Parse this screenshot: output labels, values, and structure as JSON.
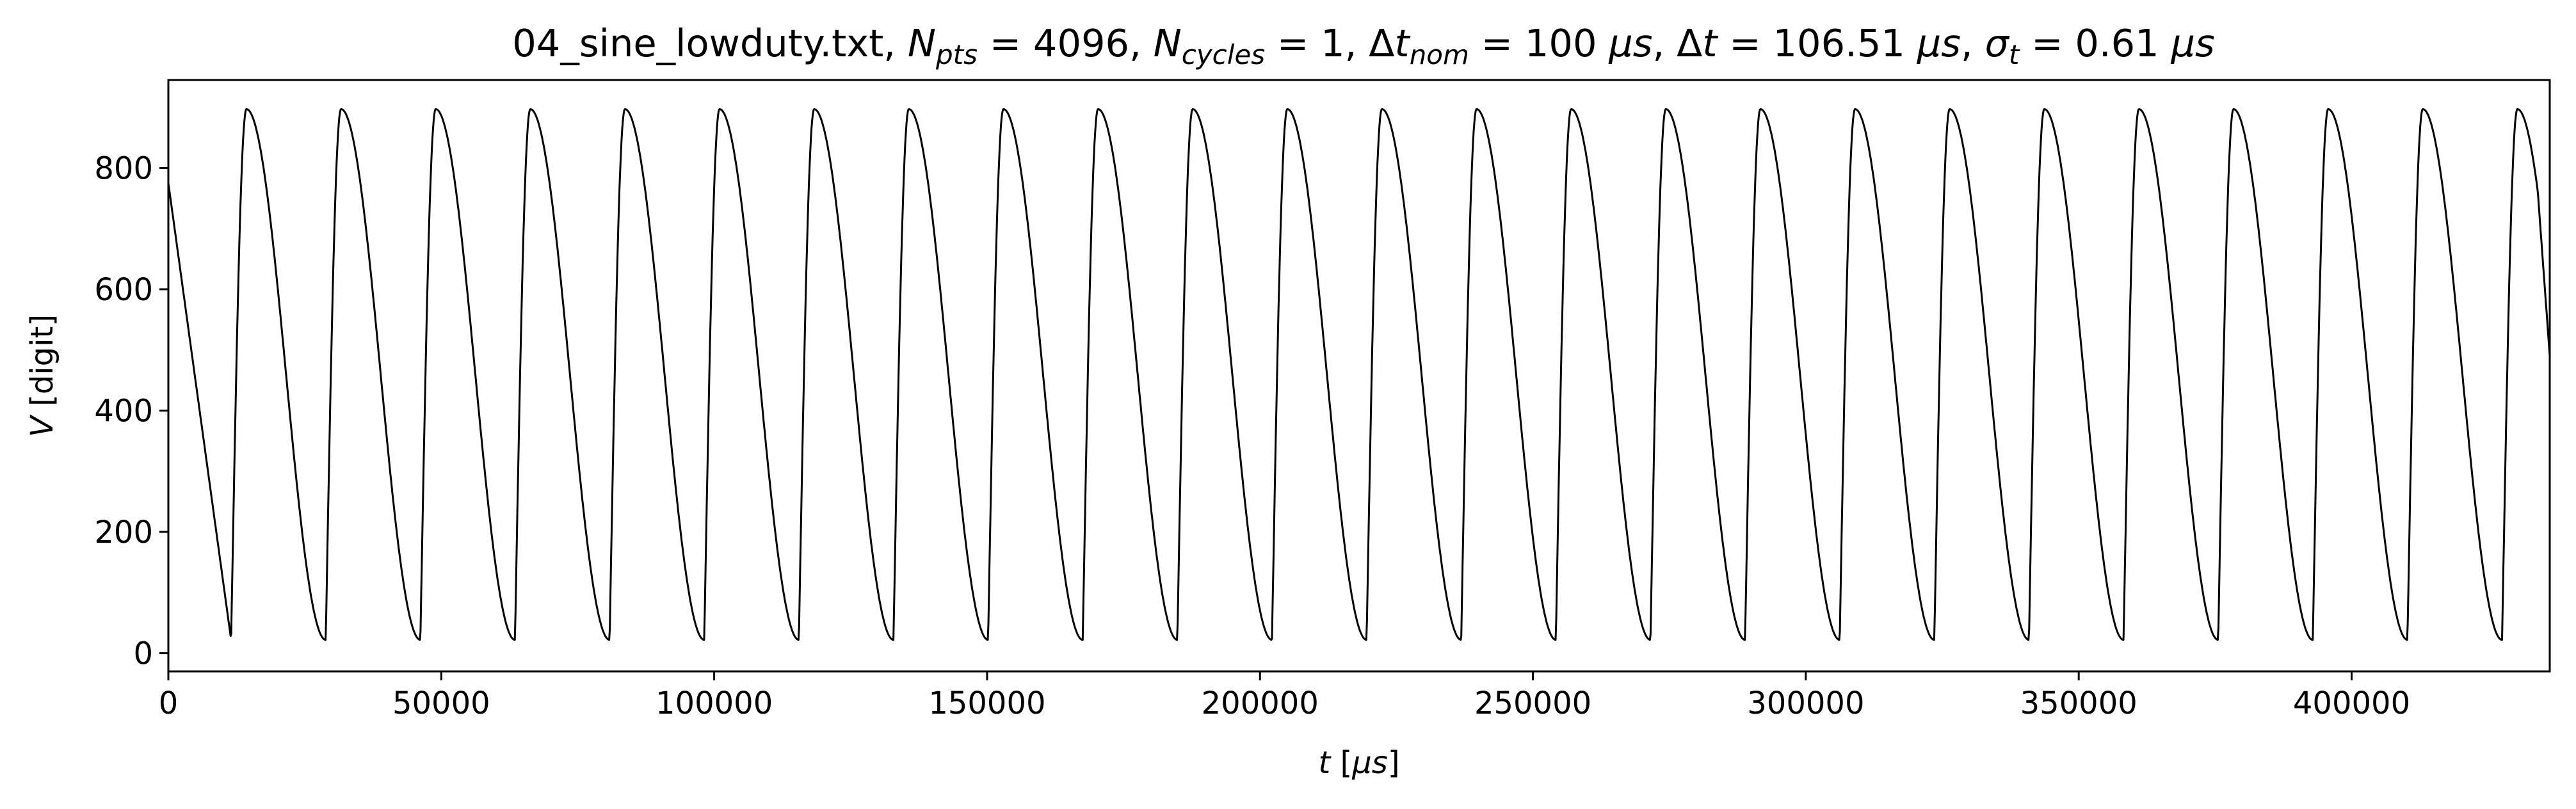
{
  "chart_data": {
    "type": "line",
    "title": {
      "prefix": "04_sine_lowduty.txt, ",
      "npts_sym": "N",
      "npts_sub": "pts",
      "npts_val": " = 4096, ",
      "ncyc_sym": "N",
      "ncyc_sub": "cycles",
      "ncyc_val": " = 1, ",
      "dtnom_pre": "Δ",
      "dtnom_sym": "t",
      "dtnom_sub": "nom",
      "dtnom_val": " = 100 ",
      "dtnom_unit": "μs",
      "dtnom_sep": ", ",
      "dt_pre": "Δ",
      "dt_sym": "t",
      "dt_val": " = 106.51 ",
      "dt_unit": "μs",
      "dt_sep": ", ",
      "sig_sym": "σ",
      "sig_sub": "t",
      "sig_val": " = 0.61 ",
      "sig_unit": "μs"
    },
    "xlabel": {
      "sym": "t",
      "open": " [",
      "unit": "μs",
      "close": "]"
    },
    "ylabel": {
      "sym": "V",
      "rest": " [digit]"
    },
    "xlim": [
      0,
      436300
    ],
    "ylim": [
      -30,
      945
    ],
    "xticks": [
      0,
      50000,
      100000,
      150000,
      200000,
      250000,
      300000,
      350000,
      400000
    ],
    "yticks": [
      0,
      200,
      400,
      600,
      800
    ],
    "grid": false,
    "series": [
      {
        "line_color": "#000000",
        "period_us": 17336,
        "first_peak_us": 14300,
        "rise_us": 2800,
        "peak_value": 897,
        "trough_value": 22,
        "start_value": 775,
        "end_value": 490
      }
    ]
  }
}
